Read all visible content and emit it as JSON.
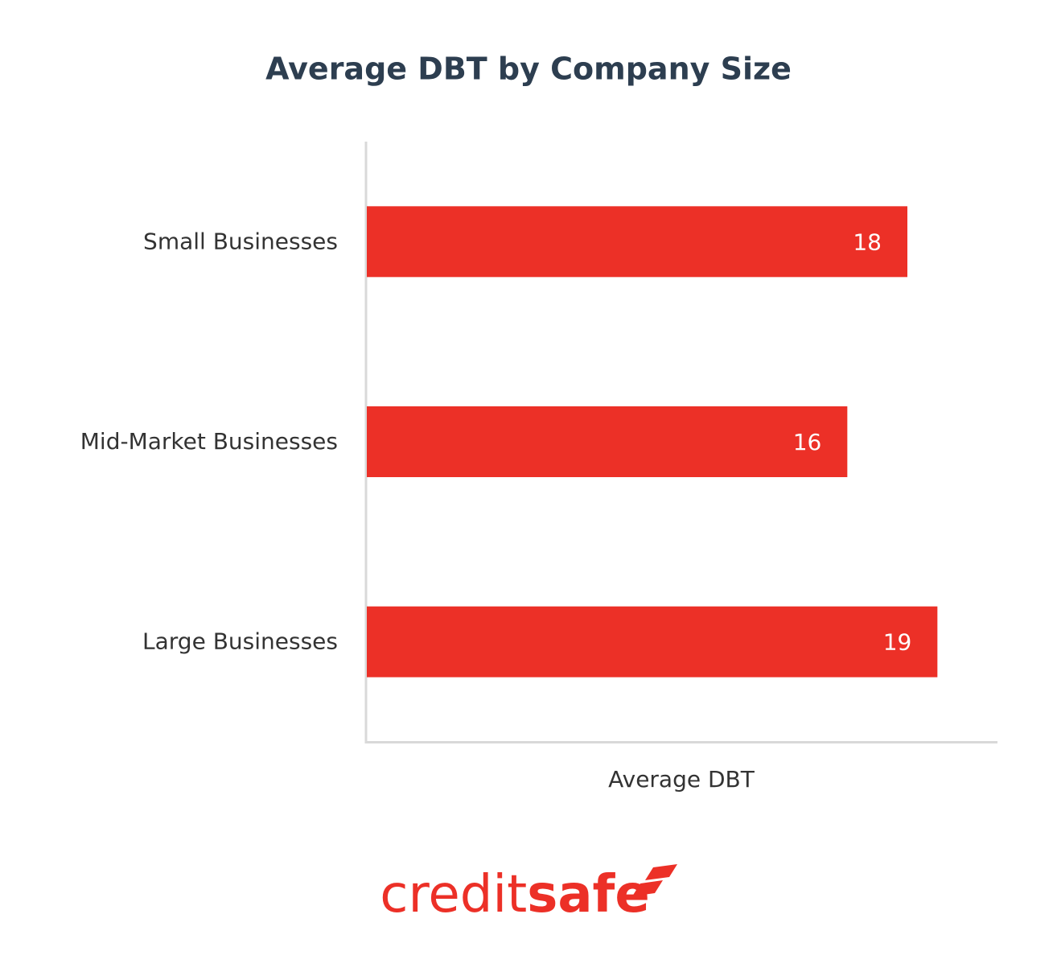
{
  "chart_data": {
    "type": "barh",
    "title": "Average DBT by Company Size",
    "categories": [
      "Small Businesses",
      "Mid-Market Businesses",
      "Large Businesses"
    ],
    "values": [
      18,
      16,
      19
    ],
    "color": "#ec3027",
    "xlabel": "Average DBT",
    "xlim": [
      0,
      21
    ]
  },
  "logo": {
    "light": "credit",
    "bold": "safe"
  }
}
